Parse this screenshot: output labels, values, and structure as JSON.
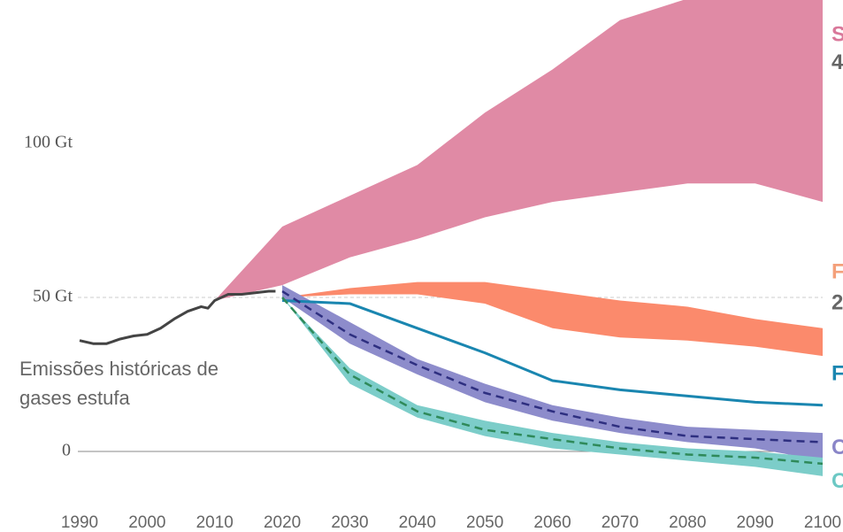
{
  "chart_data": {
    "type": "band-line",
    "xlim": [
      1990,
      2100
    ],
    "ylim": [
      -15,
      145
    ],
    "xticks": [
      1990,
      2000,
      2010,
      2020,
      2030,
      2040,
      2050,
      2060,
      2070,
      2080,
      2090,
      2100
    ],
    "yticks": [
      0,
      {
        "value": 50,
        "label": "50 Gt"
      },
      {
        "value": 100,
        "label": "100 Gt"
      }
    ],
    "grid_lines": [
      "solid",
      "dashed",
      null
    ],
    "annotation": [
      "Emissões históricas de",
      "gases estufa"
    ],
    "side_labels": [
      {
        "text": "S",
        "color": "#d9789a",
        "y": 135
      },
      {
        "text": "4",
        "color": "#666666",
        "y": 126
      },
      {
        "text": "F",
        "color": "#f4a07a",
        "y": 58
      },
      {
        "text": "2",
        "color": "#666666",
        "y": 48
      },
      {
        "text": "F",
        "color": "#1a86b0",
        "y": 25
      },
      {
        "text": "C",
        "color": "#8a86c8",
        "y": 1
      },
      {
        "text": "C",
        "color": "#6cc8c4",
        "y": -10
      }
    ],
    "series": [
      {
        "kind": "band",
        "color": "#e08aa5",
        "x": [
          2010,
          2020,
          2030,
          2040,
          2050,
          2060,
          2070,
          2080,
          2090,
          2100
        ],
        "upper": [
          49,
          73,
          83,
          93,
          110,
          124,
          140,
          147,
          150,
          150
        ],
        "lower": [
          49,
          54,
          63,
          69,
          76,
          81,
          84,
          87,
          87,
          81
        ]
      },
      {
        "kind": "band",
        "color": "#fb8a6c",
        "x": [
          2020,
          2030,
          2040,
          2050,
          2060,
          2070,
          2080,
          2090,
          2100
        ],
        "upper": [
          50,
          53,
          55,
          55,
          52,
          49,
          47,
          43,
          40
        ],
        "lower": [
          50,
          51,
          51,
          48,
          40,
          37,
          36,
          34,
          31
        ]
      },
      {
        "kind": "band",
        "color": "#8d8ccb",
        "x": [
          2020,
          2030,
          2040,
          2050,
          2060,
          2070,
          2080,
          2090,
          2100
        ],
        "upper": [
          54,
          42,
          30,
          22,
          15,
          11,
          8,
          7,
          6
        ],
        "lower": [
          50,
          35,
          25,
          16,
          10,
          6,
          3,
          1,
          -3
        ]
      },
      {
        "kind": "band",
        "color": "#7ccdc9",
        "x": [
          2020,
          2030,
          2040,
          2050,
          2060,
          2070,
          2080,
          2090,
          2100
        ],
        "upper": [
          50,
          27,
          15,
          10,
          6,
          3,
          1,
          0,
          -2
        ],
        "lower": [
          50,
          22,
          11,
          5,
          1,
          -1,
          -3,
          -5,
          -8
        ]
      },
      {
        "kind": "line",
        "color": "#1a86b0",
        "dashed": false,
        "x": [
          2020,
          2030,
          2040,
          2050,
          2060,
          2070,
          2080,
          2090,
          2100
        ],
        "values": [
          49,
          48,
          40,
          32,
          23,
          20,
          18,
          16,
          15
        ]
      },
      {
        "kind": "line",
        "color": "#2e2f80",
        "dashed": true,
        "x": [
          2020,
          2030,
          2040,
          2050,
          2060,
          2070,
          2080,
          2090,
          2100
        ],
        "values": [
          52,
          38,
          28,
          19,
          13,
          8,
          5,
          4,
          3
        ]
      },
      {
        "kind": "line",
        "color": "#2f8a5a",
        "dashed": true,
        "x": [
          2020,
          2030,
          2040,
          2050,
          2060,
          2070,
          2080,
          2090,
          2100
        ],
        "values": [
          50,
          25,
          13,
          7,
          4,
          1,
          -1,
          -2,
          -4
        ]
      },
      {
        "kind": "line",
        "color": "#444444",
        "dashed": false,
        "x": [
          1990,
          1992,
          1994,
          1996,
          1998,
          2000,
          2002,
          2004,
          2006,
          2008,
          2009,
          2010,
          2012,
          2014,
          2016,
          2018,
          2019
        ],
        "values": [
          36,
          35,
          35,
          36.5,
          37.5,
          38,
          40,
          43,
          45.5,
          47,
          46.5,
          49,
          51,
          51,
          51.5,
          52,
          52
        ]
      }
    ]
  }
}
